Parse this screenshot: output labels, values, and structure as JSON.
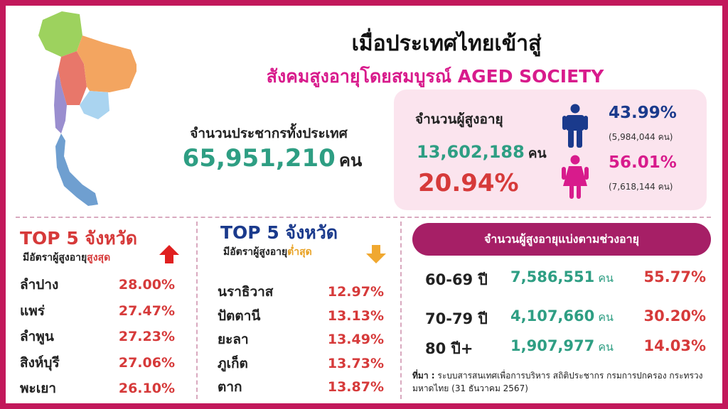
{
  "header": {
    "title": "เมื่อประเทศไทยเข้าสู่",
    "subtitle": "สังคมสูงอายุโดยสมบูรณ์ AGED SOCIETY"
  },
  "population": {
    "label": "จำนวนประชากรทั้งประเทศ",
    "value": "65,951,210",
    "unit": "คน"
  },
  "elderly": {
    "label": "จำนวนผู้สูงอายุ",
    "count": "13,602,188",
    "count_unit": "คน",
    "percent": "20.94%",
    "male": {
      "percent": "43.99%",
      "count": "(5,984,044 คน)",
      "icon": "male-person-icon",
      "color": "#1a3a8c"
    },
    "female": {
      "percent": "56.01%",
      "count": "(7,618,144 คน)",
      "icon": "female-person-icon",
      "color": "#d81b8c"
    }
  },
  "top_highest": {
    "title": "TOP 5 จังหวัด",
    "subtitle_prefix": "มีอัตราผู้สูงอายุ",
    "subtitle_highlight": "สูงสุด",
    "icon": "arrow-up-icon",
    "rows": [
      {
        "province": "ลำปาง",
        "percent": "28.00%"
      },
      {
        "province": "แพร่",
        "percent": "27.47%"
      },
      {
        "province": "ลำพูน",
        "percent": "27.23%"
      },
      {
        "province": "สิงห์บุรี",
        "percent": "27.06%"
      },
      {
        "province": "พะเยา",
        "percent": "26.10%"
      }
    ]
  },
  "top_lowest": {
    "title": "TOP 5 จังหวัด",
    "subtitle_prefix": "มีอัตราผู้สูงอายุ",
    "subtitle_highlight": "ต่ำสุด",
    "icon": "arrow-down-icon",
    "rows": [
      {
        "province": "นราธิวาส",
        "percent": "12.97%"
      },
      {
        "province": "ปัตตานี",
        "percent": "13.13%"
      },
      {
        "province": "ยะลา",
        "percent": "13.49%"
      },
      {
        "province": "ภูเก็ต",
        "percent": "13.73%"
      },
      {
        "province": "ตาก",
        "percent": "13.87%"
      }
    ]
  },
  "age_groups": {
    "header": "จำนวนผู้สูงอายุแบ่งตามช่วงอายุ",
    "rows": [
      {
        "range": "60-69 ปี",
        "count": "7,586,551",
        "unit": "คน",
        "percent": "55.77%"
      },
      {
        "range": "70-79 ปี",
        "count": "4,107,660",
        "unit": "คน",
        "percent": "30.20%"
      },
      {
        "range": "80 ปี+",
        "count": "1,907,977",
        "unit": "คน",
        "percent": "14.03%"
      }
    ]
  },
  "source": {
    "label": "ที่มา :",
    "text": "ระบบสารสนเทศเพื่อการบริหาร สถิติประชากร กรมการปกครอง กระทรวงมหาดไทย (31 ธันวาคม 2567)"
  },
  "colors": {
    "frame": "#c2185b",
    "green": "#2e9e83",
    "red": "#d63a3a",
    "navy": "#1a3a8c",
    "pink": "#d81b8c",
    "age_header_bg": "#a61f66",
    "elder_box_bg": "#fbe4ee"
  }
}
